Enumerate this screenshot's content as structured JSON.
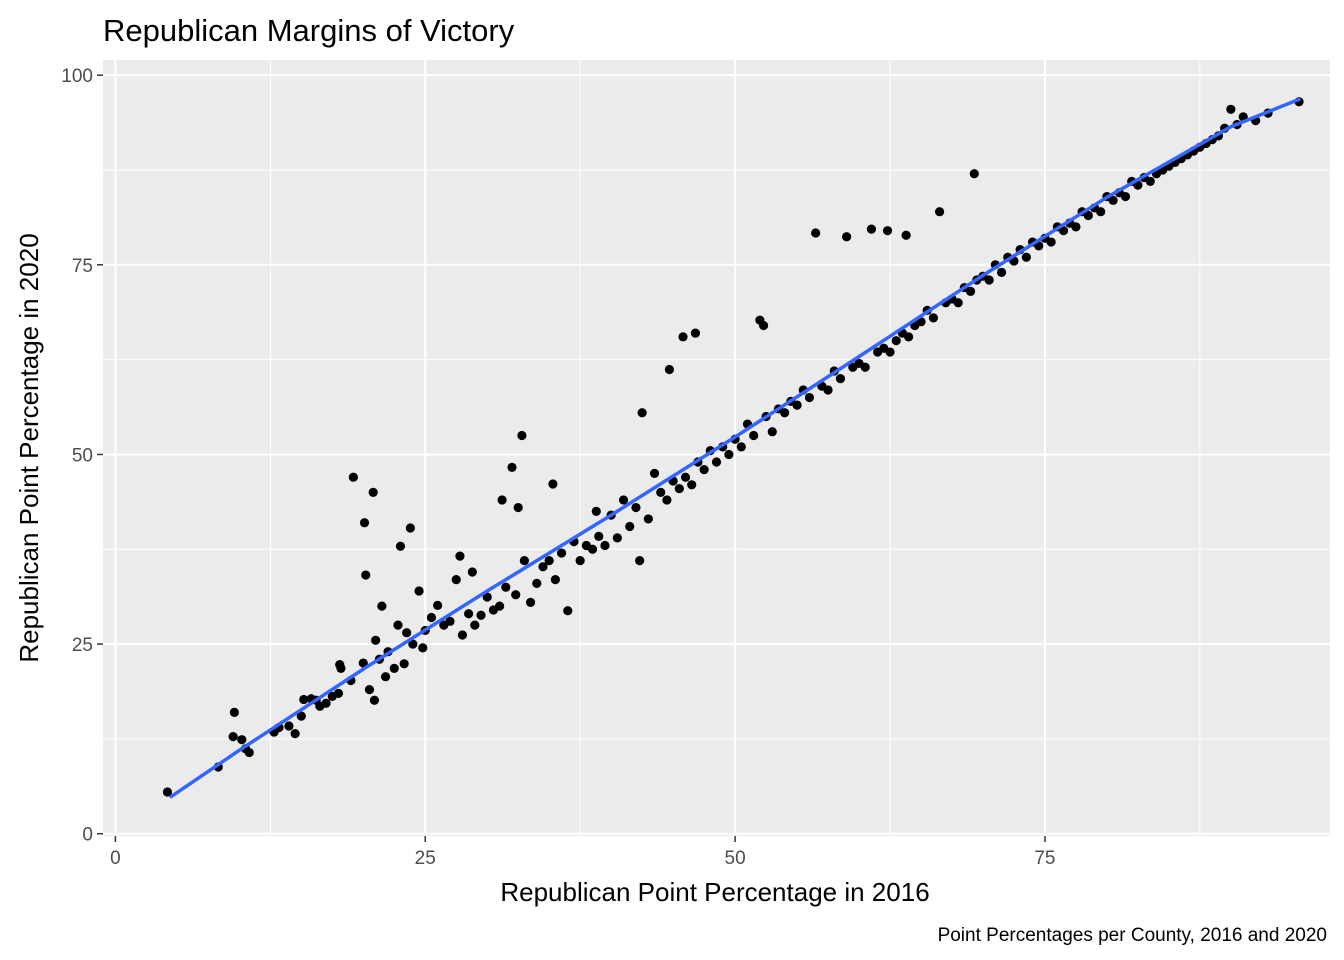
{
  "chart_data": {
    "type": "scatter",
    "title": "Republican Margins of Victory",
    "caption": "Point Percentages per County, 2016 and 2020",
    "xlabel": "Republican Point Percentage in 2016",
    "ylabel": "Republican Point Percentage in 2020",
    "xlim": [
      -1.0,
      98.0
    ],
    "ylim": [
      -0.3,
      102.0
    ],
    "xticks": [
      0,
      25,
      50,
      75
    ],
    "yticks": [
      0,
      25,
      50,
      75,
      100
    ],
    "grid": true,
    "legend": "none",
    "colors": {
      "panel": "#EBEBEB",
      "grid": "#FFFFFF",
      "points": "#000000",
      "trend": "#3366FF"
    },
    "series": [
      {
        "type": "scatter",
        "points": [
          [
            4.2,
            5.5
          ],
          [
            8.3,
            8.8
          ],
          [
            9.5,
            12.8
          ],
          [
            9.6,
            16.0
          ],
          [
            10.2,
            12.4
          ],
          [
            10.5,
            11.2
          ],
          [
            10.8,
            10.7
          ],
          [
            12.8,
            13.4
          ],
          [
            13.2,
            14.0
          ],
          [
            14.0,
            14.2
          ],
          [
            14.5,
            13.2
          ],
          [
            15.0,
            15.5
          ],
          [
            15.2,
            17.7
          ],
          [
            15.8,
            17.8
          ],
          [
            16.2,
            17.6
          ],
          [
            16.5,
            16.8
          ],
          [
            17.0,
            17.2
          ],
          [
            17.5,
            18.1
          ],
          [
            18.0,
            18.5
          ],
          [
            18.1,
            22.3
          ],
          [
            18.2,
            21.8
          ],
          [
            19.0,
            20.2
          ],
          [
            19.2,
            47.0
          ],
          [
            20.0,
            22.5
          ],
          [
            20.1,
            41.0
          ],
          [
            20.2,
            34.1
          ],
          [
            20.5,
            19.0
          ],
          [
            20.8,
            45.0
          ],
          [
            20.9,
            17.6
          ],
          [
            21.0,
            25.5
          ],
          [
            21.3,
            23.0
          ],
          [
            21.5,
            30.0
          ],
          [
            21.8,
            20.7
          ],
          [
            22.0,
            24.0
          ],
          [
            22.5,
            21.8
          ],
          [
            22.8,
            27.5
          ],
          [
            23.0,
            37.9
          ],
          [
            23.3,
            22.4
          ],
          [
            23.5,
            26.5
          ],
          [
            23.8,
            40.3
          ],
          [
            24.0,
            25.0
          ],
          [
            24.5,
            32.0
          ],
          [
            24.8,
            24.5
          ],
          [
            25.0,
            26.8
          ],
          [
            25.5,
            28.5
          ],
          [
            26.0,
            30.1
          ],
          [
            26.5,
            27.5
          ],
          [
            27.0,
            28.0
          ],
          [
            27.5,
            33.5
          ],
          [
            27.8,
            36.6
          ],
          [
            28.0,
            26.2
          ],
          [
            28.5,
            29.0
          ],
          [
            28.8,
            34.5
          ],
          [
            29.0,
            27.5
          ],
          [
            29.5,
            28.8
          ],
          [
            30.0,
            31.2
          ],
          [
            30.5,
            29.5
          ],
          [
            31.0,
            30.0
          ],
          [
            31.2,
            44.0
          ],
          [
            31.5,
            32.5
          ],
          [
            32.0,
            48.3
          ],
          [
            32.3,
            31.5
          ],
          [
            32.5,
            43.0
          ],
          [
            32.8,
            52.5
          ],
          [
            33.0,
            36.0
          ],
          [
            33.5,
            30.5
          ],
          [
            34.0,
            33.0
          ],
          [
            34.5,
            35.2
          ],
          [
            35.0,
            36.0
          ],
          [
            35.3,
            46.1
          ],
          [
            35.5,
            33.5
          ],
          [
            36.0,
            37.0
          ],
          [
            36.5,
            29.4
          ],
          [
            37.0,
            38.5
          ],
          [
            37.5,
            36.0
          ],
          [
            38.0,
            38.0
          ],
          [
            38.5,
            37.5
          ],
          [
            38.8,
            42.5
          ],
          [
            39.0,
            39.2
          ],
          [
            39.5,
            38.0
          ],
          [
            40.0,
            42.0
          ],
          [
            40.5,
            39.0
          ],
          [
            41.0,
            44.0
          ],
          [
            41.5,
            40.5
          ],
          [
            42.0,
            43.0
          ],
          [
            42.3,
            36.0
          ],
          [
            42.5,
            55.5
          ],
          [
            43.0,
            41.5
          ],
          [
            43.5,
            47.5
          ],
          [
            44.0,
            45.0
          ],
          [
            44.5,
            44.0
          ],
          [
            44.7,
            61.2
          ],
          [
            45.0,
            46.5
          ],
          [
            45.5,
            45.5
          ],
          [
            45.8,
            65.5
          ],
          [
            46.0,
            47.0
          ],
          [
            46.5,
            46.0
          ],
          [
            46.8,
            66.0
          ],
          [
            47.0,
            49.0
          ],
          [
            47.5,
            48.0
          ],
          [
            48.0,
            50.5
          ],
          [
            48.5,
            49.0
          ],
          [
            49.0,
            51.0
          ],
          [
            49.5,
            50.0
          ],
          [
            50.0,
            52.0
          ],
          [
            50.5,
            51.0
          ],
          [
            51.0,
            54.0
          ],
          [
            51.5,
            52.5
          ],
          [
            52.0,
            67.7
          ],
          [
            52.3,
            67.0
          ],
          [
            52.5,
            55.0
          ],
          [
            53.0,
            53.0
          ],
          [
            53.5,
            56.0
          ],
          [
            54.0,
            55.5
          ],
          [
            54.5,
            57.0
          ],
          [
            55.0,
            56.5
          ],
          [
            55.5,
            58.5
          ],
          [
            56.0,
            57.5
          ],
          [
            56.5,
            79.2
          ],
          [
            57.0,
            59.0
          ],
          [
            57.5,
            58.5
          ],
          [
            58.0,
            61.0
          ],
          [
            58.5,
            60.0
          ],
          [
            59.0,
            78.7
          ],
          [
            59.5,
            61.5
          ],
          [
            60.0,
            62.0
          ],
          [
            60.5,
            61.5
          ],
          [
            61.0,
            79.7
          ],
          [
            61.5,
            63.5
          ],
          [
            62.0,
            64.0
          ],
          [
            62.3,
            79.5
          ],
          [
            62.5,
            63.5
          ],
          [
            63.0,
            65.0
          ],
          [
            63.5,
            66.0
          ],
          [
            63.8,
            78.9
          ],
          [
            64.0,
            65.5
          ],
          [
            64.5,
            67.0
          ],
          [
            65.0,
            67.5
          ],
          [
            65.5,
            69.0
          ],
          [
            66.0,
            68.0
          ],
          [
            66.5,
            82.0
          ],
          [
            67.0,
            70.0
          ],
          [
            67.5,
            70.5
          ],
          [
            68.0,
            70.0
          ],
          [
            68.5,
            72.0
          ],
          [
            69.0,
            71.5
          ],
          [
            69.3,
            87.0
          ],
          [
            69.5,
            73.0
          ],
          [
            70.0,
            73.5
          ],
          [
            70.5,
            73.0
          ],
          [
            71.0,
            75.0
          ],
          [
            71.5,
            74.0
          ],
          [
            72.0,
            76.0
          ],
          [
            72.5,
            75.5
          ],
          [
            73.0,
            77.0
          ],
          [
            73.5,
            76.0
          ],
          [
            74.0,
            78.0
          ],
          [
            74.5,
            77.5
          ],
          [
            75.0,
            78.5
          ],
          [
            75.5,
            78.0
          ],
          [
            76.0,
            80.0
          ],
          [
            76.5,
            79.5
          ],
          [
            77.0,
            80.5
          ],
          [
            77.5,
            80.0
          ],
          [
            78.0,
            82.0
          ],
          [
            78.5,
            81.5
          ],
          [
            79.0,
            82.5
          ],
          [
            79.5,
            82.0
          ],
          [
            80.0,
            84.0
          ],
          [
            80.5,
            83.5
          ],
          [
            81.0,
            84.5
          ],
          [
            81.5,
            84.0
          ],
          [
            82.0,
            86.0
          ],
          [
            82.5,
            85.5
          ],
          [
            83.0,
            86.5
          ],
          [
            83.5,
            86.0
          ],
          [
            84.0,
            87.0
          ],
          [
            84.5,
            87.5
          ],
          [
            85.0,
            88.0
          ],
          [
            85.5,
            88.5
          ],
          [
            86.0,
            89.0
          ],
          [
            86.5,
            89.5
          ],
          [
            87.0,
            90.0
          ],
          [
            87.5,
            90.5
          ],
          [
            88.0,
            91.0
          ],
          [
            88.5,
            91.5
          ],
          [
            89.0,
            92.0
          ],
          [
            89.5,
            93.0
          ],
          [
            90.0,
            95.5
          ],
          [
            90.5,
            93.5
          ],
          [
            91.0,
            94.5
          ],
          [
            92.0,
            94.0
          ],
          [
            93.0,
            95.0
          ],
          [
            95.5,
            96.5
          ]
        ]
      },
      {
        "type": "line",
        "points": [
          [
            4.5,
            4.9
          ],
          [
            10,
            11.0
          ],
          [
            20,
            21.7
          ],
          [
            30,
            32.0
          ],
          [
            40,
            42.0
          ],
          [
            50,
            52.3
          ],
          [
            60,
            62.9
          ],
          [
            70,
            73.6
          ],
          [
            80,
            83.9
          ],
          [
            90,
            93.2
          ],
          [
            95.5,
            96.8
          ]
        ]
      }
    ]
  }
}
